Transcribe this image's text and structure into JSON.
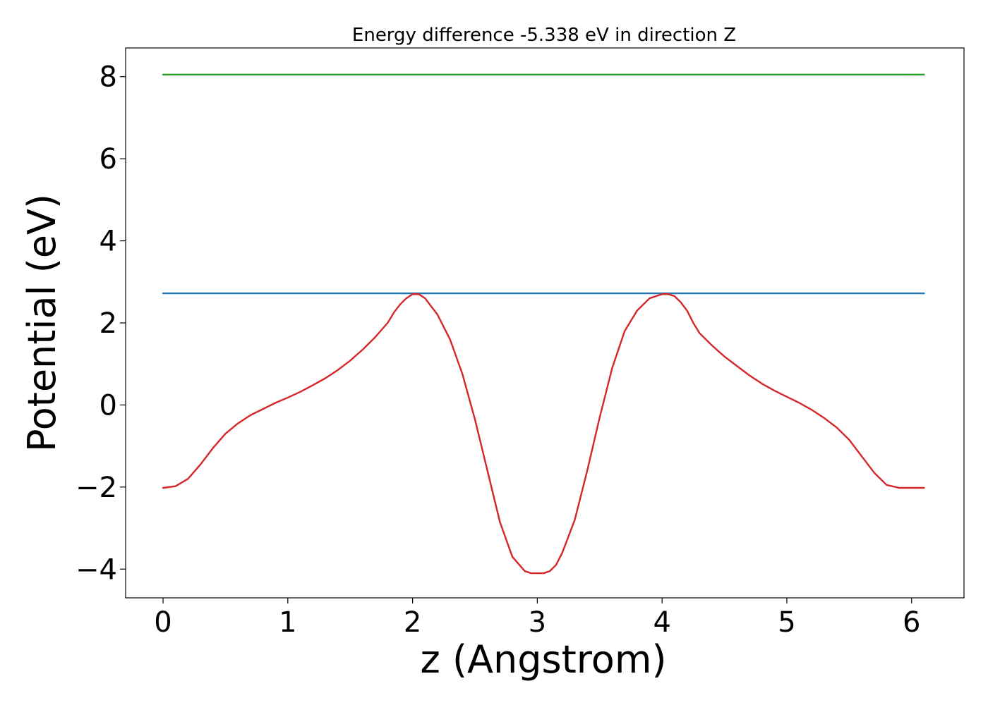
{
  "chart_data": {
    "type": "line",
    "title": "Energy difference -5.338 eV in direction Z",
    "xlabel": "z (Angstrom)",
    "ylabel": "Potential (eV)",
    "xlim": [
      -0.3,
      6.42
    ],
    "ylim": [
      -4.7,
      8.7
    ],
    "xticks": [
      0,
      1,
      2,
      3,
      4,
      5,
      6
    ],
    "xtick_labels": [
      "0",
      "1",
      "2",
      "3",
      "4",
      "5",
      "6"
    ],
    "yticks": [
      -4,
      -2,
      0,
      2,
      4,
      6,
      8
    ],
    "ytick_labels": [
      "−4",
      "−2",
      "0",
      "2",
      "4",
      "6",
      "8"
    ],
    "grid": false,
    "legend": "none",
    "series": [
      {
        "color": "#d62728",
        "x": [
          0,
          0.1,
          0.2,
          0.3,
          0.4,
          0.5,
          0.6,
          0.7,
          0.8,
          0.9,
          1.0,
          1.1,
          1.2,
          1.3,
          1.4,
          1.5,
          1.6,
          1.7,
          1.8,
          1.85,
          1.9,
          1.95,
          2.0,
          2.05,
          2.1,
          2.2,
          2.3,
          2.4,
          2.5,
          2.6,
          2.7,
          2.8,
          2.9,
          2.95,
          3.0,
          3.05,
          3.1,
          3.15,
          3.2,
          3.3,
          3.4,
          3.5,
          3.6,
          3.7,
          3.8,
          3.9,
          4.0,
          4.05,
          4.1,
          4.15,
          4.2,
          4.25,
          4.3,
          4.4,
          4.5,
          4.6,
          4.7,
          4.8,
          4.9,
          5.0,
          5.1,
          5.2,
          5.3,
          5.4,
          5.5,
          5.6,
          5.7,
          5.8,
          5.9,
          6.0,
          6.1
        ],
        "y": [
          -2.02,
          -1.98,
          -1.8,
          -1.45,
          -1.05,
          -0.7,
          -0.45,
          -0.25,
          -0.1,
          0.05,
          0.18,
          0.32,
          0.48,
          0.65,
          0.85,
          1.08,
          1.35,
          1.65,
          2.0,
          2.25,
          2.45,
          2.6,
          2.7,
          2.7,
          2.6,
          2.2,
          1.6,
          0.75,
          -0.35,
          -1.6,
          -2.85,
          -3.7,
          -4.05,
          -4.1,
          -4.1,
          -4.1,
          -4.05,
          -3.9,
          -3.6,
          -2.8,
          -1.6,
          -0.3,
          0.9,
          1.8,
          2.3,
          2.6,
          2.7,
          2.7,
          2.65,
          2.5,
          2.3,
          2.0,
          1.75,
          1.45,
          1.18,
          0.95,
          0.72,
          0.52,
          0.35,
          0.2,
          0.05,
          -0.12,
          -0.32,
          -0.55,
          -0.85,
          -1.25,
          -1.65,
          -1.95,
          -2.02,
          -2.02,
          -2.02
        ]
      },
      {
        "color": "#1f77b4",
        "x": [
          0,
          6.1
        ],
        "y": [
          2.72,
          2.72
        ]
      },
      {
        "color": "#2ca02c",
        "x": [
          0,
          6.1
        ],
        "y": [
          8.05,
          8.05
        ]
      }
    ]
  }
}
